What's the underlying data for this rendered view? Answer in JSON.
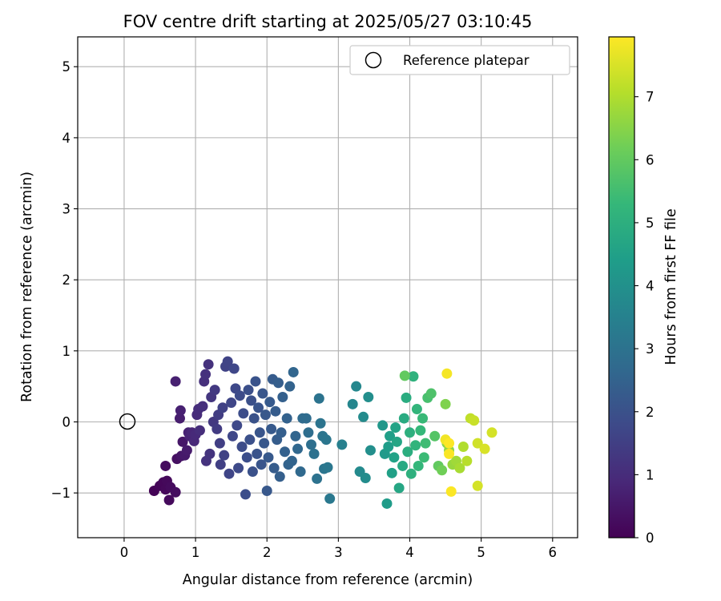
{
  "chart_data": {
    "type": "scatter",
    "title": "FOV centre drift starting at 2025/05/27 03:10:45",
    "xlabel": "Angular distance from reference (arcmin)",
    "ylabel": "Rotation from reference (arcmin)",
    "xlim": [
      -0.65,
      6.35
    ],
    "ylim": [
      -1.63,
      5.42
    ],
    "xticks": [
      0,
      1,
      2,
      3,
      4,
      5,
      6
    ],
    "yticks": [
      -1,
      0,
      1,
      2,
      3,
      4,
      5
    ],
    "xtick_labels": [
      "0",
      "1",
      "2",
      "3",
      "4",
      "5",
      "6"
    ],
    "ytick_labels": [
      "−1",
      "0",
      "1",
      "2",
      "3",
      "4",
      "5"
    ],
    "grid": true,
    "legend": {
      "position": "top-right",
      "entries": [
        "Reference platepar"
      ]
    },
    "reference_point": {
      "x": 0,
      "y": 0,
      "marker": "open-circle",
      "color": "#000000"
    },
    "colorbar": {
      "label": "Hours from first FF file",
      "colormap": "viridis",
      "range": [
        0,
        7.95
      ],
      "ticks": [
        0,
        1,
        2,
        3,
        4,
        5,
        6,
        7
      ],
      "tick_labels": [
        "0",
        "1",
        "2",
        "3",
        "4",
        "5",
        "6",
        "7"
      ]
    },
    "colormap_stops": [
      "#440154",
      "#482878",
      "#3e4989",
      "#31688e",
      "#26828e",
      "#1f9e89",
      "#35b779",
      "#6ece58",
      "#b5de2b",
      "#fde725"
    ],
    "points": [
      {
        "x": 0.42,
        "y": -0.97,
        "h": 0.05
      },
      {
        "x": 0.5,
        "y": -0.9,
        "h": 0.1
      },
      {
        "x": 0.55,
        "y": -0.85,
        "h": 0.12
      },
      {
        "x": 0.58,
        "y": -0.95,
        "h": 0.15
      },
      {
        "x": 0.6,
        "y": -0.83,
        "h": 0.18
      },
      {
        "x": 0.63,
        "y": -1.1,
        "h": 0.2
      },
      {
        "x": 0.65,
        "y": -0.92,
        "h": 0.22
      },
      {
        "x": 0.58,
        "y": -0.62,
        "h": 0.25
      },
      {
        "x": 0.72,
        "y": -0.99,
        "h": 0.28
      },
      {
        "x": 0.74,
        "y": -0.52,
        "h": 0.35
      },
      {
        "x": 0.8,
        "y": -0.48,
        "h": 0.45
      },
      {
        "x": 0.82,
        "y": -0.28,
        "h": 0.5
      },
      {
        "x": 0.85,
        "y": -0.47,
        "h": 0.55
      },
      {
        "x": 0.88,
        "y": -0.4,
        "h": 0.6
      },
      {
        "x": 0.78,
        "y": 0.05,
        "h": 0.65
      },
      {
        "x": 0.79,
        "y": 0.16,
        "h": 0.7
      },
      {
        "x": 0.72,
        "y": 0.57,
        "h": 0.72
      },
      {
        "x": 0.9,
        "y": -0.15,
        "h": 0.75
      },
      {
        "x": 0.92,
        "y": -0.2,
        "h": 0.8
      },
      {
        "x": 0.95,
        "y": -0.15,
        "h": 0.85
      },
      {
        "x": 0.98,
        "y": -0.27,
        "h": 0.9
      },
      {
        "x": 1.0,
        "y": -0.18,
        "h": 0.95
      },
      {
        "x": 1.02,
        "y": 0.1,
        "h": 1.0
      },
      {
        "x": 1.04,
        "y": 0.18,
        "h": 1.02
      },
      {
        "x": 1.06,
        "y": -0.12,
        "h": 1.05
      },
      {
        "x": 1.1,
        "y": 0.22,
        "h": 1.08
      },
      {
        "x": 1.12,
        "y": 0.57,
        "h": 1.1
      },
      {
        "x": 1.14,
        "y": 0.67,
        "h": 1.12
      },
      {
        "x": 1.18,
        "y": 0.81,
        "h": 1.15
      },
      {
        "x": 1.15,
        "y": -0.55,
        "h": 1.18
      },
      {
        "x": 1.2,
        "y": -0.45,
        "h": 1.2
      },
      {
        "x": 1.22,
        "y": 0.35,
        "h": 1.25
      },
      {
        "x": 1.25,
        "y": 0.0,
        "h": 1.3
      },
      {
        "x": 1.27,
        "y": 0.45,
        "h": 1.35
      },
      {
        "x": 1.3,
        "y": -0.1,
        "h": 1.4
      },
      {
        "x": 1.32,
        "y": 0.1,
        "h": 1.45
      },
      {
        "x": 1.34,
        "y": -0.3,
        "h": 1.5
      },
      {
        "x": 1.35,
        "y": -0.6,
        "h": 1.52
      },
      {
        "x": 1.38,
        "y": 0.2,
        "h": 1.55
      },
      {
        "x": 1.4,
        "y": -0.47,
        "h": 1.58
      },
      {
        "x": 1.42,
        "y": 0.78,
        "h": 1.6
      },
      {
        "x": 1.45,
        "y": 0.85,
        "h": 1.62
      },
      {
        "x": 1.47,
        "y": -0.73,
        "h": 1.65
      },
      {
        "x": 1.5,
        "y": 0.27,
        "h": 1.68
      },
      {
        "x": 1.52,
        "y": -0.2,
        "h": 1.7
      },
      {
        "x": 1.54,
        "y": 0.75,
        "h": 1.72
      },
      {
        "x": 1.56,
        "y": 0.47,
        "h": 1.75
      },
      {
        "x": 1.58,
        "y": -0.05,
        "h": 1.78
      },
      {
        "x": 1.6,
        "y": -0.65,
        "h": 1.8
      },
      {
        "x": 1.62,
        "y": 0.37,
        "h": 1.82
      },
      {
        "x": 1.65,
        "y": -0.35,
        "h": 1.85
      },
      {
        "x": 1.67,
        "y": 0.12,
        "h": 1.87
      },
      {
        "x": 1.7,
        "y": -1.02,
        "h": 1.9
      },
      {
        "x": 1.72,
        "y": -0.5,
        "h": 1.92
      },
      {
        "x": 1.74,
        "y": 0.45,
        "h": 1.94
      },
      {
        "x": 1.76,
        "y": -0.25,
        "h": 1.96
      },
      {
        "x": 1.78,
        "y": 0.3,
        "h": 1.98
      },
      {
        "x": 1.8,
        "y": -0.7,
        "h": 2.0
      },
      {
        "x": 1.82,
        "y": 0.05,
        "h": 2.02
      },
      {
        "x": 1.84,
        "y": 0.57,
        "h": 2.04
      },
      {
        "x": 1.86,
        "y": -0.45,
        "h": 2.06
      },
      {
        "x": 1.88,
        "y": 0.2,
        "h": 2.08
      },
      {
        "x": 1.9,
        "y": -0.15,
        "h": 2.1
      },
      {
        "x": 1.92,
        "y": -0.6,
        "h": 2.12
      },
      {
        "x": 1.94,
        "y": 0.4,
        "h": 2.14
      },
      {
        "x": 1.96,
        "y": -0.3,
        "h": 2.16
      },
      {
        "x": 1.98,
        "y": 0.1,
        "h": 2.18
      },
      {
        "x": 2.0,
        "y": -0.97,
        "h": 2.2
      },
      {
        "x": 2.02,
        "y": -0.5,
        "h": 2.22
      },
      {
        "x": 2.04,
        "y": 0.28,
        "h": 2.24
      },
      {
        "x": 2.06,
        "y": -0.1,
        "h": 2.26
      },
      {
        "x": 2.08,
        "y": 0.6,
        "h": 2.28
      },
      {
        "x": 2.1,
        "y": -0.65,
        "h": 2.3
      },
      {
        "x": 2.12,
        "y": 0.15,
        "h": 2.32
      },
      {
        "x": 2.14,
        "y": -0.25,
        "h": 2.34
      },
      {
        "x": 2.16,
        "y": 0.55,
        "h": 2.36
      },
      {
        "x": 2.18,
        "y": -0.77,
        "h": 2.38
      },
      {
        "x": 2.2,
        "y": -0.15,
        "h": 2.4
      },
      {
        "x": 2.22,
        "y": 0.35,
        "h": 2.42
      },
      {
        "x": 2.25,
        "y": -0.42,
        "h": 2.45
      },
      {
        "x": 2.28,
        "y": 0.05,
        "h": 2.48
      },
      {
        "x": 2.3,
        "y": -0.6,
        "h": 2.5
      },
      {
        "x": 2.32,
        "y": 0.5,
        "h": 2.52
      },
      {
        "x": 2.35,
        "y": -0.55,
        "h": 2.55
      },
      {
        "x": 2.37,
        "y": 0.7,
        "h": 2.58
      },
      {
        "x": 2.4,
        "y": -0.2,
        "h": 2.6
      },
      {
        "x": 2.43,
        "y": -0.38,
        "h": 2.65
      },
      {
        "x": 2.47,
        "y": -0.7,
        "h": 2.7
      },
      {
        "x": 2.5,
        "y": 0.05,
        "h": 2.75
      },
      {
        "x": 2.55,
        "y": 0.05,
        "h": 2.8
      },
      {
        "x": 2.58,
        "y": -0.15,
        "h": 2.85
      },
      {
        "x": 2.62,
        "y": -0.32,
        "h": 2.9
      },
      {
        "x": 2.66,
        "y": -0.45,
        "h": 2.95
      },
      {
        "x": 2.7,
        "y": -0.8,
        "h": 3.0
      },
      {
        "x": 2.73,
        "y": 0.33,
        "h": 3.02
      },
      {
        "x": 2.75,
        "y": -0.02,
        "h": 3.05
      },
      {
        "x": 2.78,
        "y": -0.2,
        "h": 3.08
      },
      {
        "x": 2.8,
        "y": -0.66,
        "h": 3.1
      },
      {
        "x": 2.83,
        "y": -0.25,
        "h": 3.12
      },
      {
        "x": 2.85,
        "y": -0.64,
        "h": 3.15
      },
      {
        "x": 2.88,
        "y": -1.08,
        "h": 3.2
      },
      {
        "x": 3.05,
        "y": -0.32,
        "h": 3.45
      },
      {
        "x": 3.2,
        "y": 0.25,
        "h": 3.65
      },
      {
        "x": 3.25,
        "y": 0.5,
        "h": 3.7
      },
      {
        "x": 3.3,
        "y": -0.7,
        "h": 3.78
      },
      {
        "x": 3.35,
        "y": 0.07,
        "h": 3.82
      },
      {
        "x": 3.38,
        "y": -0.79,
        "h": 3.86
      },
      {
        "x": 3.42,
        "y": 0.35,
        "h": 3.9
      },
      {
        "x": 3.45,
        "y": -0.4,
        "h": 3.95
      },
      {
        "x": 3.62,
        "y": -0.05,
        "h": 4.2
      },
      {
        "x": 3.65,
        "y": -0.45,
        "h": 4.3
      },
      {
        "x": 3.68,
        "y": -1.15,
        "h": 4.35
      },
      {
        "x": 3.7,
        "y": -0.35,
        "h": 4.4
      },
      {
        "x": 3.72,
        "y": -0.2,
        "h": 4.45
      },
      {
        "x": 3.75,
        "y": -0.72,
        "h": 4.5
      },
      {
        "x": 3.78,
        "y": -0.5,
        "h": 4.55
      },
      {
        "x": 3.8,
        "y": -0.08,
        "h": 4.6
      },
      {
        "x": 3.82,
        "y": -0.28,
        "h": 4.65
      },
      {
        "x": 3.85,
        "y": -0.93,
        "h": 4.7
      },
      {
        "x": 3.9,
        "y": -0.62,
        "h": 4.8
      },
      {
        "x": 3.92,
        "y": 0.05,
        "h": 4.85
      },
      {
        "x": 3.95,
        "y": 0.34,
        "h": 4.9
      },
      {
        "x": 3.97,
        "y": -0.42,
        "h": 4.95
      },
      {
        "x": 4.0,
        "y": -0.15,
        "h": 5.0
      },
      {
        "x": 4.02,
        "y": -0.73,
        "h": 5.05
      },
      {
        "x": 4.05,
        "y": 0.64,
        "h": 5.1
      },
      {
        "x": 4.08,
        "y": -0.33,
        "h": 5.15
      },
      {
        "x": 4.1,
        "y": 0.18,
        "h": 5.2
      },
      {
        "x": 4.12,
        "y": -0.62,
        "h": 5.25
      },
      {
        "x": 4.15,
        "y": -0.12,
        "h": 5.3
      },
      {
        "x": 4.18,
        "y": 0.05,
        "h": 5.35
      },
      {
        "x": 4.2,
        "y": -0.5,
        "h": 5.4
      },
      {
        "x": 4.22,
        "y": -0.3,
        "h": 5.45
      },
      {
        "x": 3.93,
        "y": 0.65,
        "h": 6.0
      },
      {
        "x": 4.25,
        "y": 0.34,
        "h": 5.6
      },
      {
        "x": 4.3,
        "y": 0.4,
        "h": 5.7
      },
      {
        "x": 4.35,
        "y": -0.2,
        "h": 5.8
      },
      {
        "x": 4.4,
        "y": -0.62,
        "h": 6.0
      },
      {
        "x": 4.45,
        "y": -0.68,
        "h": 6.2
      },
      {
        "x": 4.5,
        "y": 0.25,
        "h": 6.4
      },
      {
        "x": 4.52,
        "y": -0.3,
        "h": 6.5
      },
      {
        "x": 4.55,
        "y": -0.4,
        "h": 6.6
      },
      {
        "x": 4.6,
        "y": -0.6,
        "h": 6.7
      },
      {
        "x": 4.65,
        "y": -0.55,
        "h": 6.8
      },
      {
        "x": 4.7,
        "y": -0.65,
        "h": 6.9
      },
      {
        "x": 4.75,
        "y": -0.35,
        "h": 7.0
      },
      {
        "x": 4.8,
        "y": -0.55,
        "h": 7.1
      },
      {
        "x": 4.85,
        "y": 0.05,
        "h": 7.2
      },
      {
        "x": 4.9,
        "y": 0.02,
        "h": 7.3
      },
      {
        "x": 4.95,
        "y": -0.3,
        "h": 7.4
      },
      {
        "x": 4.95,
        "y": -0.9,
        "h": 7.45
      },
      {
        "x": 5.05,
        "y": -0.38,
        "h": 7.5
      },
      {
        "x": 5.15,
        "y": -0.15,
        "h": 7.45
      },
      {
        "x": 4.5,
        "y": -0.25,
        "h": 7.8
      },
      {
        "x": 4.52,
        "y": 0.68,
        "h": 7.85
      },
      {
        "x": 4.55,
        "y": -0.45,
        "h": 7.9
      },
      {
        "x": 4.58,
        "y": -0.98,
        "h": 7.92
      },
      {
        "x": 4.55,
        "y": -0.3,
        "h": 7.94
      }
    ]
  }
}
